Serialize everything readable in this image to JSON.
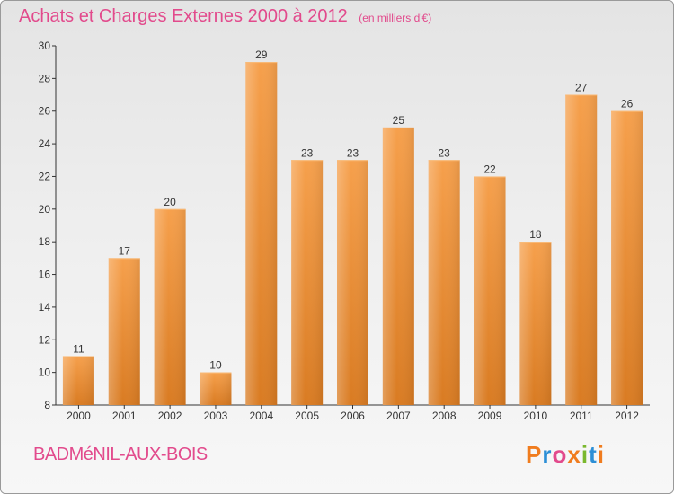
{
  "header": {
    "title": "Achats et Charges Externes 2000 à 2012",
    "unit_note": "(en milliers d'€)"
  },
  "footer": {
    "commune": "BADMéNIL-AUX-BOIS",
    "logo_text": "Proxiti",
    "logo_colors": [
      "#f07c1e",
      "#2c8fd6",
      "#e24a8c",
      "#f07c1e",
      "#7ab82e",
      "#2c8fd6",
      "#f07c1e"
    ]
  },
  "colors": {
    "title": "#e24a8c",
    "bar_light": "#f6a04c",
    "bar_dark": "#d97b22",
    "axis": "#333333",
    "grid": "#cfcfcf"
  },
  "chart_data": {
    "type": "bar",
    "title": "Achats et Charges Externes 2000 à 2012",
    "subtitle": "(en milliers d'€)",
    "categories": [
      "2000",
      "2001",
      "2002",
      "2003",
      "2004",
      "2005",
      "2006",
      "2007",
      "2008",
      "2009",
      "2010",
      "2011",
      "2012"
    ],
    "values": [
      11,
      17,
      20,
      10,
      29,
      23,
      23,
      25,
      23,
      22,
      18,
      27,
      26
    ],
    "ylim": [
      8,
      30
    ],
    "yticks": [
      8,
      10,
      12,
      14,
      16,
      18,
      20,
      22,
      24,
      26,
      28,
      30
    ],
    "xlabel": "",
    "ylabel": "",
    "grid": false,
    "data_labels": true
  }
}
